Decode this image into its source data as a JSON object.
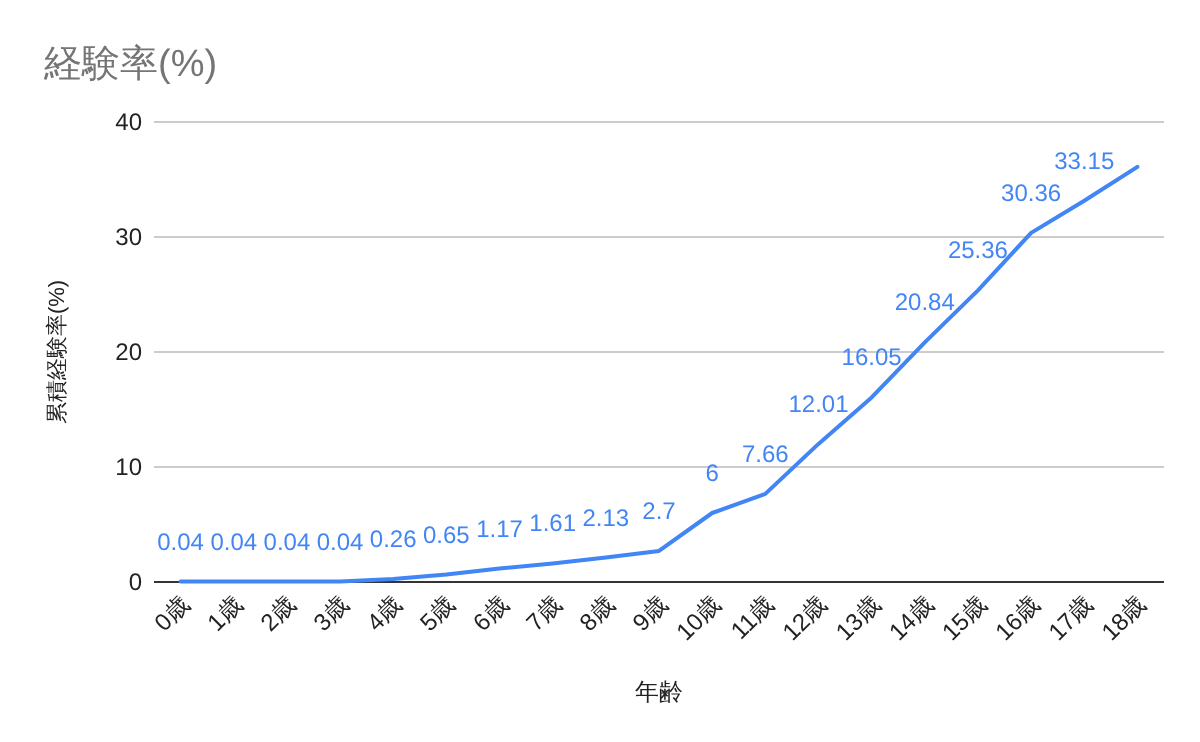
{
  "chart_data": {
    "type": "line",
    "title": "経験率(%)",
    "xlabel": "年齢",
    "ylabel": "累積経験率(%)",
    "categories": [
      "0歳",
      "1歳",
      "2歳",
      "3歳",
      "4歳",
      "5歳",
      "6歳",
      "7歳",
      "8歳",
      "9歳",
      "10歳",
      "11歳",
      "12歳",
      "13歳",
      "14歳",
      "15歳",
      "16歳",
      "17歳",
      "18歳"
    ],
    "series": [
      {
        "color": "#4285f4",
        "values": [
          0.04,
          0.04,
          0.04,
          0.04,
          0.26,
          0.65,
          1.17,
          1.61,
          2.13,
          2.7,
          6,
          7.66,
          12.01,
          16.05,
          20.84,
          25.36,
          30.36,
          33.15,
          36.1
        ],
        "value_labels": [
          "0.04",
          "0.04",
          "0.04",
          "0.04",
          "0.26",
          "0.65",
          "1.17",
          "1.61",
          "2.13",
          "2.7",
          "6",
          "7.66",
          "12.01",
          "16.05",
          "20.84",
          "25.36",
          "30.36",
          "33.15",
          null
        ]
      }
    ],
    "ylim": [
      0,
      40
    ],
    "yticks": [
      0,
      10,
      20,
      30,
      40
    ],
    "grid": "y"
  }
}
